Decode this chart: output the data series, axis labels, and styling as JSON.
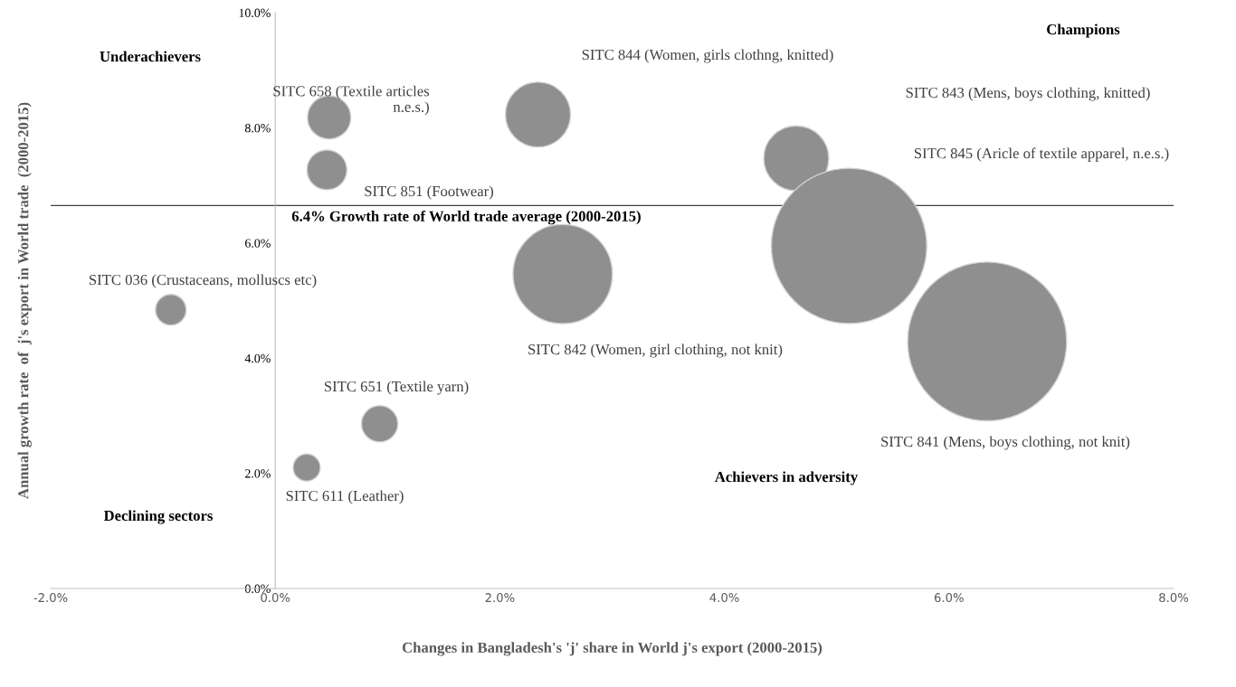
{
  "chart_data": {
    "type": "bubble",
    "xlabel": "Changes in Bangladesh's 'j' share in World j's export (2000-2015)",
    "ylabel": "Annual growth rate  of  j's export in World trade  (2000-2015)",
    "xlim": [
      -2,
      8
    ],
    "ylim": [
      0,
      10
    ],
    "xticks": [
      {
        "value": -2,
        "label": "-2.0%"
      },
      {
        "value": 0,
        "label": "0.0%"
      },
      {
        "value": 2,
        "label": "2.0%"
      },
      {
        "value": 4,
        "label": "4.0%"
      },
      {
        "value": 6,
        "label": "6.0%"
      },
      {
        "value": 8,
        "label": "8.0%"
      }
    ],
    "yticks": [
      {
        "value": 0,
        "label": "0.0%"
      },
      {
        "value": 2,
        "label": "2.0%"
      },
      {
        "value": 4,
        "label": "4.0%"
      },
      {
        "value": 6,
        "label": "6.0%"
      },
      {
        "value": 8,
        "label": "8.0%"
      },
      {
        "value": 10,
        "label": "10.0%"
      }
    ],
    "relative": false,
    "series": [
      {
        "color": "#8f8f8f",
        "x": [
          -0.93,
          0.48,
          0.46,
          2.34,
          4.64,
          5.11,
          2.56,
          6.34,
          0.93,
          0.28
        ],
        "values": [
          4.84,
          8.18,
          7.27,
          8.23,
          7.47,
          5.95,
          5.46,
          4.29,
          2.86,
          2.1
        ],
        "sizes": [
          0.037,
          0.074,
          0.0625,
          0.167,
          0.167,
          0.955,
          0.39,
          1,
          0.052,
          0.029
        ]
      }
    ],
    "ref_lines": [
      {
        "axis": "y",
        "value": 6.65,
        "label": "6.4% Growth rate of World trade average (2000-2015)",
        "color": "#404040"
      }
    ],
    "annotations": [
      "SITC 036 (Crustaceans, molluscs etc)",
      "SITC 658 (Textile articles\nn.e.s.)",
      "SITC 851 (Footwear)",
      "SITC 844 (Women, girls clothng, knitted)",
      "SITC 843 (Mens, boys clothing, knitted)",
      "SITC 845 (Aricle of textile apparel, n.e.s.)",
      "SITC 842 (Women, girl clothing, not knit)",
      "SITC 841 (Mens, boys clothing, not knit)",
      "SITC 651 (Textile yarn)",
      "SITC 611 (Leather)",
      "Underachievers",
      "Champions",
      "Declining sectors",
      "Achievers in adversity"
    ],
    "grid": false,
    "legend": false
  }
}
